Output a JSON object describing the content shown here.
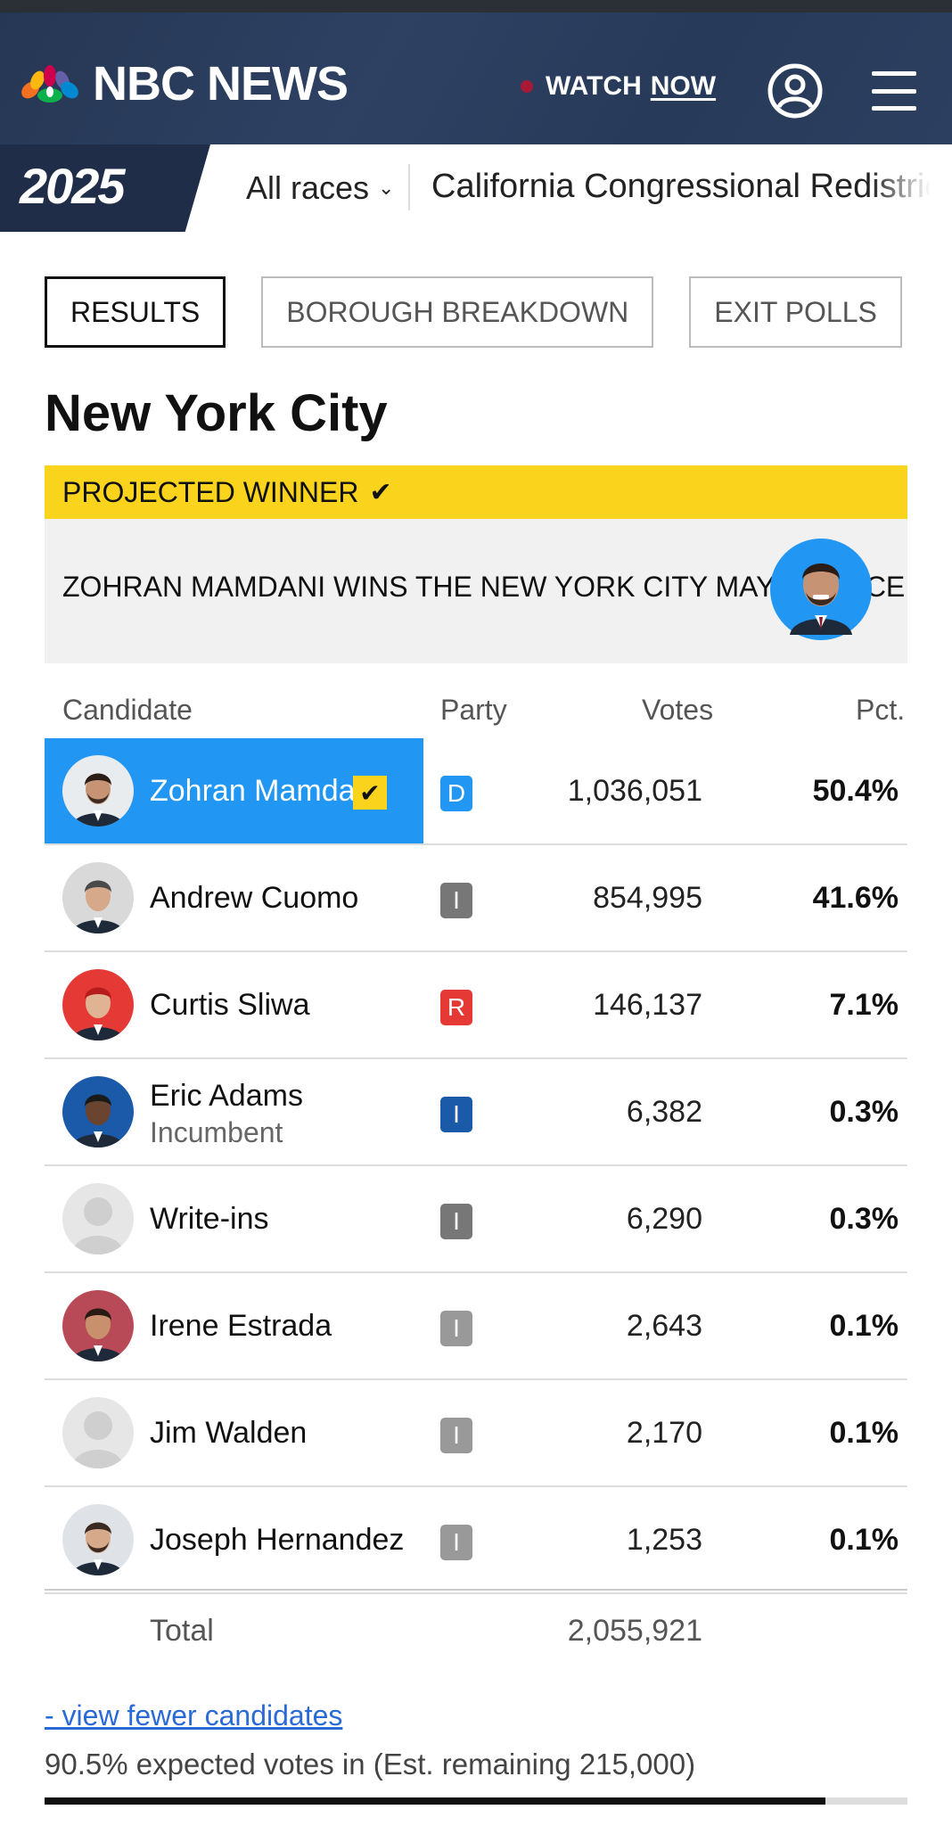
{
  "header": {
    "logo_text": "NBC NEWS",
    "watch_label": "WATCH",
    "now_label": "NOW"
  },
  "subnav": {
    "year_badge": "2025",
    "all_races": "All races",
    "race_link": "California Congressional Redistricting"
  },
  "tabs": [
    {
      "label": "RESULTS",
      "active": true
    },
    {
      "label": "BOROUGH BREAKDOWN",
      "active": false
    },
    {
      "label": "EXIT POLLS",
      "active": false
    }
  ],
  "page_title": "New York City",
  "projected": {
    "label": "PROJECTED WINNER",
    "message": "ZOHRAN MAMDANI WINS THE NEW YORK CITY MAYOR RACE"
  },
  "table": {
    "headers": {
      "candidate": "Candidate",
      "party": "Party",
      "votes": "Votes",
      "pct": "Pct."
    },
    "rows": [
      {
        "name": "Zohran Mamdani",
        "sub": "",
        "party": "D",
        "party_color": "#2196f3",
        "votes": "1,036,051",
        "pct": "50.4%",
        "winner": true
      },
      {
        "name": "Andrew Cuomo",
        "sub": "",
        "party": "I",
        "party_color": "#777777",
        "votes": "854,995",
        "pct": "41.6%",
        "winner": false
      },
      {
        "name": "Curtis Sliwa",
        "sub": "",
        "party": "R",
        "party_color": "#e53935",
        "votes": "146,137",
        "pct": "7.1%",
        "winner": false
      },
      {
        "name": "Eric Adams",
        "sub": "Incumbent",
        "party": "I",
        "party_color": "#1a5aa8",
        "votes": "6,382",
        "pct": "0.3%",
        "winner": false
      },
      {
        "name": "Write-ins",
        "sub": "",
        "party": "I",
        "party_color": "#777777",
        "votes": "6,290",
        "pct": "0.3%",
        "winner": false
      },
      {
        "name": "Irene Estrada",
        "sub": "",
        "party": "I",
        "party_color": "#999999",
        "votes": "2,643",
        "pct": "0.1%",
        "winner": false
      },
      {
        "name": "Jim Walden",
        "sub": "",
        "party": "I",
        "party_color": "#999999",
        "votes": "2,170",
        "pct": "0.1%",
        "winner": false
      },
      {
        "name": "Joseph Hernandez",
        "sub": "",
        "party": "I",
        "party_color": "#999999",
        "votes": "1,253",
        "pct": "0.1%",
        "winner": false
      }
    ],
    "total_label": "Total",
    "total_votes": "2,055,921"
  },
  "footer": {
    "fewer_link": "- view fewer candidates",
    "expected_text": "90.5% expected votes in (Est. remaining 215,000)",
    "expected_fraction": 0.905
  }
}
